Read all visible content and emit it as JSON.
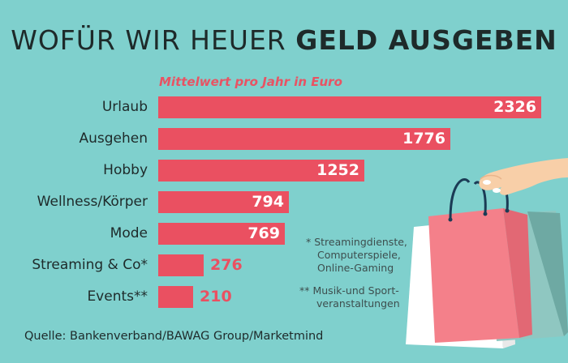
{
  "title": {
    "part1": "WOFÜR WIR HEUER",
    "part2": "GELD AUSGEBEN"
  },
  "source": "Quelle: Bankenverband/BAWAG Group/Marketmind",
  "notes": {
    "note1": [
      "* Streamingdienste,",
      "Computerspiele,",
      "Online-Gaming"
    ],
    "note2": [
      "** Musik-und Sport-",
      "veranstaltungen"
    ]
  },
  "chart_data": {
    "type": "bar",
    "orientation": "horizontal",
    "title": "Mittelwert pro Jahr in Euro",
    "categories": [
      "Urlaub",
      "Ausgehen",
      "Hobby",
      "Wellness/Körper",
      "Mode",
      "Streaming & Co*",
      "Events**"
    ],
    "values": [
      2326,
      1776,
      1252,
      794,
      769,
      276,
      210
    ],
    "value_labels": [
      "2326",
      "1776",
      "1252",
      "794",
      "769",
      "276",
      "210"
    ],
    "bar_color": "#ea5061",
    "grid": false
  },
  "colors": {
    "background": "#7fd0cd",
    "bar": "#ea5061",
    "text": "#1e2a2a"
  },
  "illustration": "shopping-bags-in-hand"
}
